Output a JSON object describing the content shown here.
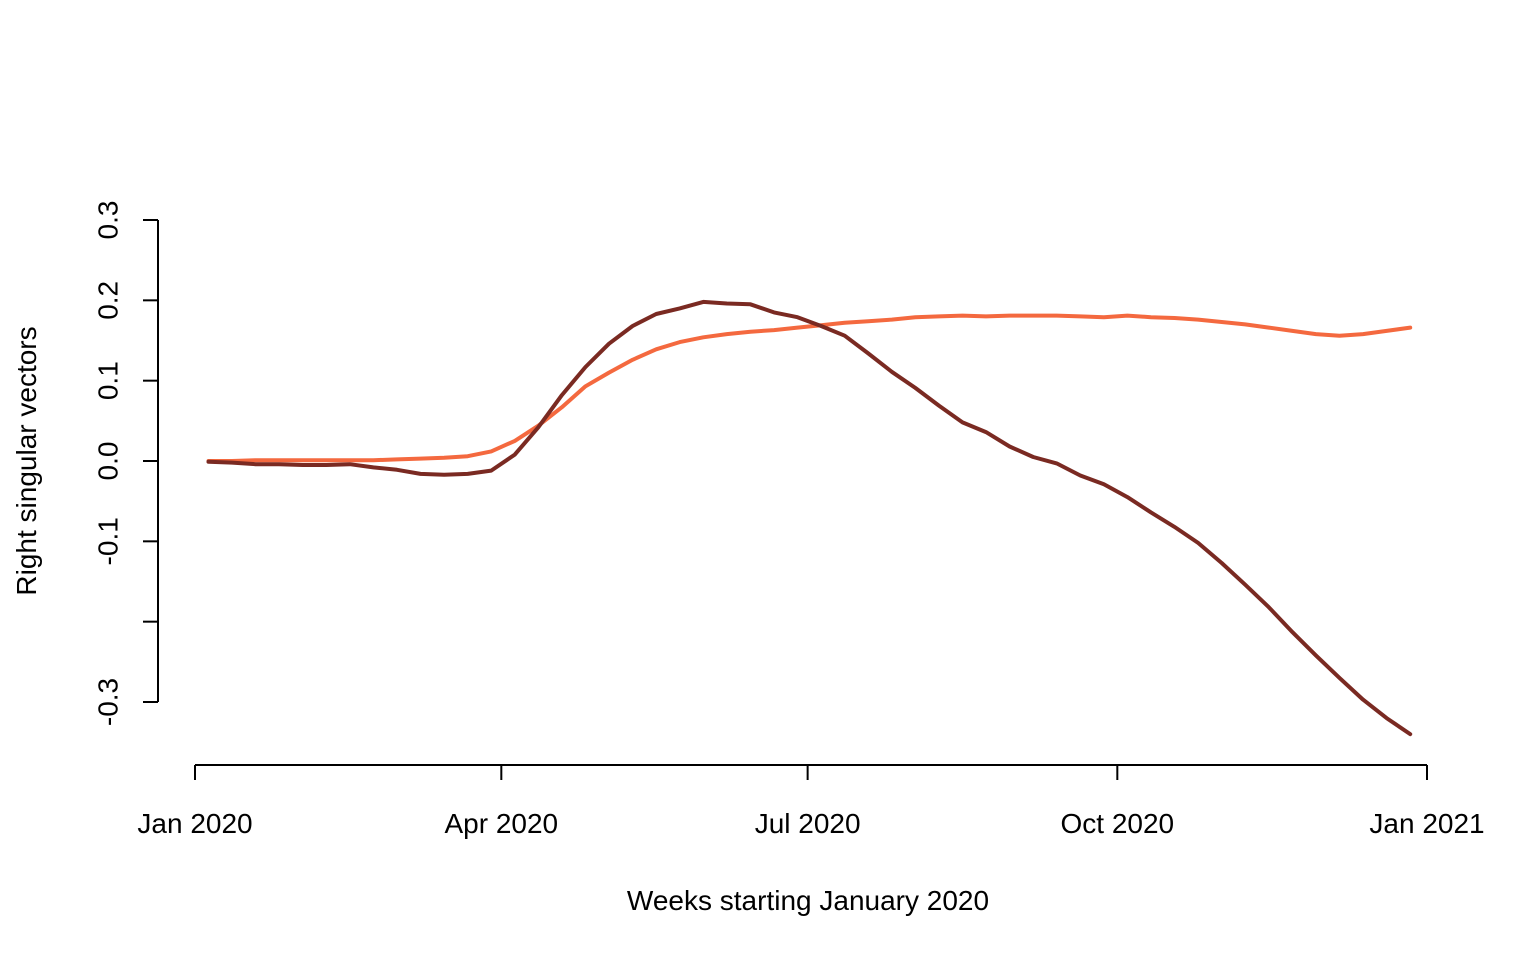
{
  "chart_data": {
    "type": "line",
    "title": "",
    "xlabel": "Weeks starting January 2020",
    "ylabel": "Right singular vectors",
    "x_ticks": [
      "Jan 2020",
      "Apr 2020",
      "Jul 2020",
      "Oct 2020",
      "Jan 2021"
    ],
    "x_tick_dates": [
      "2020-01-01",
      "2020-04-01",
      "2020-07-01",
      "2020-10-01",
      "2021-01-01"
    ],
    "y_ticks": [
      {
        "value": 0.3,
        "label": "0.3"
      },
      {
        "value": 0.2,
        "label": "0.2"
      },
      {
        "value": 0.1,
        "label": "0.1"
      },
      {
        "value": 0.0,
        "label": "0.0"
      },
      {
        "value": -0.1,
        "label": "-0.1"
      },
      {
        "value": -0.2,
        "label": ""
      },
      {
        "value": -0.3,
        "label": "-0.3"
      }
    ],
    "ylim": [
      -0.3,
      0.3
    ],
    "xlim": [
      "2020-01-01",
      "2021-01-01"
    ],
    "grid": false,
    "legend": "none",
    "x": [
      "2020-01-05",
      "2020-01-12",
      "2020-01-19",
      "2020-01-26",
      "2020-02-02",
      "2020-02-09",
      "2020-02-16",
      "2020-02-23",
      "2020-03-01",
      "2020-03-08",
      "2020-03-15",
      "2020-03-22",
      "2020-03-29",
      "2020-04-05",
      "2020-04-12",
      "2020-04-19",
      "2020-04-26",
      "2020-05-03",
      "2020-05-10",
      "2020-05-17",
      "2020-05-24",
      "2020-05-31",
      "2020-06-07",
      "2020-06-14",
      "2020-06-21",
      "2020-06-28",
      "2020-07-05",
      "2020-07-12",
      "2020-07-19",
      "2020-07-26",
      "2020-08-02",
      "2020-08-09",
      "2020-08-16",
      "2020-08-23",
      "2020-08-30",
      "2020-09-06",
      "2020-09-13",
      "2020-09-20",
      "2020-09-27",
      "2020-10-04",
      "2020-10-11",
      "2020-10-18",
      "2020-10-25",
      "2020-11-01",
      "2020-11-08",
      "2020-11-15",
      "2020-11-22",
      "2020-11-29",
      "2020-12-06",
      "2020-12-13",
      "2020-12-20",
      "2020-12-27"
    ],
    "series": [
      {
        "color": "#F4693F",
        "values": [
          0.0,
          0.0,
          0.001,
          0.001,
          0.001,
          0.001,
          0.001,
          0.001,
          0.002,
          0.003,
          0.004,
          0.006,
          0.012,
          0.025,
          0.044,
          0.067,
          0.093,
          0.11,
          0.126,
          0.139,
          0.148,
          0.154,
          0.158,
          0.161,
          0.163,
          0.166,
          0.169,
          0.172,
          0.174,
          0.176,
          0.179,
          0.18,
          0.181,
          0.18,
          0.181,
          0.181,
          0.181,
          0.18,
          0.179,
          0.181,
          0.179,
          0.178,
          0.176,
          0.173,
          0.17,
          0.166,
          0.162,
          0.158,
          0.156,
          0.158,
          0.162,
          0.166
        ]
      },
      {
        "color": "#7A2A22",
        "values": [
          -0.001,
          -0.002,
          -0.004,
          -0.004,
          -0.005,
          -0.005,
          -0.004,
          -0.008,
          -0.011,
          -0.016,
          -0.017,
          -0.016,
          -0.012,
          0.008,
          0.042,
          0.082,
          0.117,
          0.146,
          0.168,
          0.183,
          0.19,
          0.198,
          0.196,
          0.195,
          0.185,
          0.179,
          0.168,
          0.156,
          0.134,
          0.111,
          0.091,
          0.069,
          0.048,
          0.036,
          0.018,
          0.005,
          -0.003,
          -0.018,
          -0.029,
          -0.045,
          -0.064,
          -0.082,
          -0.102,
          -0.127,
          -0.154,
          -0.182,
          -0.213,
          -0.242,
          -0.27,
          -0.297,
          -0.32,
          -0.34
        ]
      }
    ]
  }
}
